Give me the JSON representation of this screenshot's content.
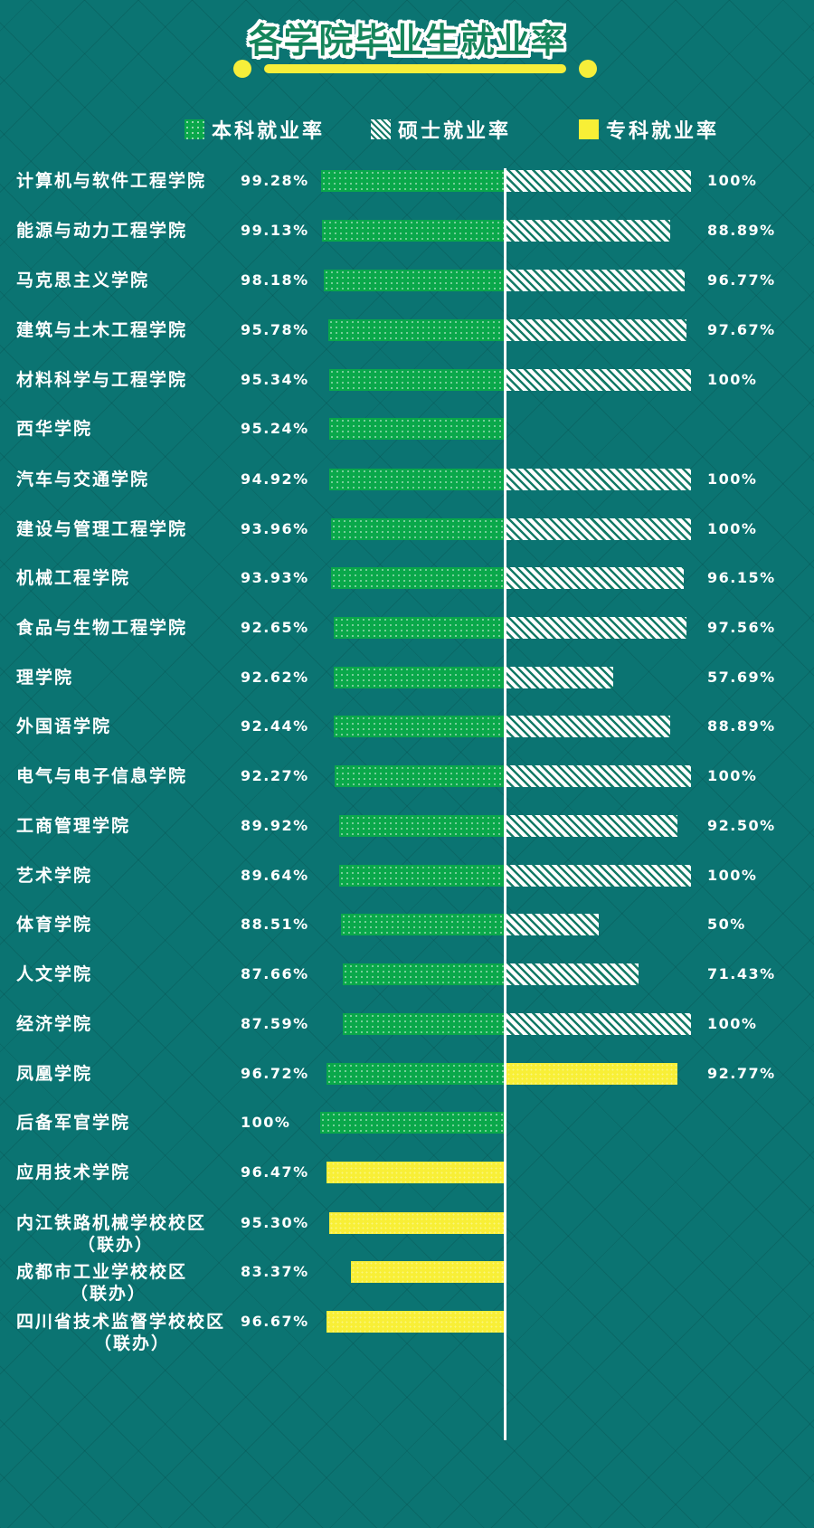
{
  "title": "各学院毕业生就业率",
  "legend": {
    "undergrad": "本科就业率",
    "master": "硕士就业率",
    "junior": "专科就业率"
  },
  "colors": {
    "background": "#0b7472",
    "undergrad": "#0aa84a",
    "master": "#ffffff",
    "junior": "#f8ef36",
    "title": "#14845a"
  },
  "rows": [
    {
      "name": "计算机与软件工程学院",
      "left": "99.28%",
      "left_type": "undergrad",
      "right": "100%",
      "right_type": "master"
    },
    {
      "name": "能源与动力工程学院",
      "left": "99.13%",
      "left_type": "undergrad",
      "right": "88.89%",
      "right_type": "master"
    },
    {
      "name": "马克思主义学院",
      "left": "98.18%",
      "left_type": "undergrad",
      "right": "96.77%",
      "right_type": "master"
    },
    {
      "name": "建筑与土木工程学院",
      "left": "95.78%",
      "left_type": "undergrad",
      "right": "97.67%",
      "right_type": "master"
    },
    {
      "name": "材料科学与工程学院",
      "left": "95.34%",
      "left_type": "undergrad",
      "right": "100%",
      "right_type": "master"
    },
    {
      "name": "西华学院",
      "left": "95.24%",
      "left_type": "undergrad",
      "right": "",
      "right_type": ""
    },
    {
      "name": "汽车与交通学院",
      "left": "94.92%",
      "left_type": "undergrad",
      "right": "100%",
      "right_type": "master"
    },
    {
      "name": "建设与管理工程学院",
      "left": "93.96%",
      "left_type": "undergrad",
      "right": "100%",
      "right_type": "master"
    },
    {
      "name": "机械工程学院",
      "left": "93.93%",
      "left_type": "undergrad",
      "right": "96.15%",
      "right_type": "master"
    },
    {
      "name": "食品与生物工程学院",
      "left": "92.65%",
      "left_type": "undergrad",
      "right": "97.56%",
      "right_type": "master"
    },
    {
      "name": "理学院",
      "left": "92.62%",
      "left_type": "undergrad",
      "right": "57.69%",
      "right_type": "master"
    },
    {
      "name": "外国语学院",
      "left": "92.44%",
      "left_type": "undergrad",
      "right": "88.89%",
      "right_type": "master"
    },
    {
      "name": "电气与电子信息学院",
      "left": "92.27%",
      "left_type": "undergrad",
      "right": "100%",
      "right_type": "master"
    },
    {
      "name": "工商管理学院",
      "left": "89.92%",
      "left_type": "undergrad",
      "right": "92.50%",
      "right_type": "master"
    },
    {
      "name": "艺术学院",
      "left": "89.64%",
      "left_type": "undergrad",
      "right": "100%",
      "right_type": "master"
    },
    {
      "name": "体育学院",
      "left": "88.51%",
      "left_type": "undergrad",
      "right": "50%",
      "right_type": "master"
    },
    {
      "name": "人文学院",
      "left": "87.66%",
      "left_type": "undergrad",
      "right": "71.43%",
      "right_type": "master"
    },
    {
      "name": "经济学院",
      "left": "87.59%",
      "left_type": "undergrad",
      "right": "100%",
      "right_type": "master"
    },
    {
      "name": "凤凰学院",
      "left": "96.72%",
      "left_type": "undergrad",
      "right": "92.77%",
      "right_type": "junior"
    },
    {
      "name": "后备军官学院",
      "left": "100%",
      "left_type": "undergrad",
      "right": "",
      "right_type": ""
    },
    {
      "name": "应用技术学院",
      "left": "96.47%",
      "left_type": "junior",
      "right": "",
      "right_type": ""
    },
    {
      "name": "内江铁路机械学校校区",
      "sub": "（联办）",
      "left": "95.30%",
      "left_type": "junior",
      "right": "",
      "right_type": ""
    },
    {
      "name": "成都市工业学校校区",
      "sub": "（联办）",
      "left": "83.37%",
      "left_type": "junior",
      "right": "",
      "right_type": ""
    },
    {
      "name": "四川省技术监督学校校区",
      "sub": "（联办）",
      "left": "96.67%",
      "left_type": "junior",
      "right": "",
      "right_type": ""
    }
  ],
  "chart_data": {
    "type": "bar",
    "title": "各学院毕业生就业率",
    "orientation": "horizontal-butterfly",
    "xlabel": "",
    "ylabel": "",
    "xlim": [
      0,
      100
    ],
    "grid": false,
    "legend_position": "top",
    "categories": [
      "计算机与软件工程学院",
      "能源与动力工程学院",
      "马克思主义学院",
      "建筑与土木工程学院",
      "材料科学与工程学院",
      "西华学院",
      "汽车与交通学院",
      "建设与管理工程学院",
      "机械工程学院",
      "食品与生物工程学院",
      "理学院",
      "外国语学院",
      "电气与电子信息学院",
      "工商管理学院",
      "艺术学院",
      "体育学院",
      "人文学院",
      "经济学院",
      "凤凰学院",
      "后备军官学院",
      "应用技术学院",
      "内江铁路机械学校校区（联办）",
      "成都市工业学校校区（联办）",
      "四川省技术监督学校校区（联办）"
    ],
    "series": [
      {
        "name": "本科就业率",
        "side": "left",
        "values": [
          99.28,
          99.13,
          98.18,
          95.78,
          95.34,
          95.24,
          94.92,
          93.96,
          93.93,
          92.65,
          92.62,
          92.44,
          92.27,
          89.92,
          89.64,
          88.51,
          87.66,
          87.59,
          96.72,
          100,
          null,
          null,
          null,
          null
        ]
      },
      {
        "name": "硕士就业率",
        "side": "right",
        "values": [
          100,
          88.89,
          96.77,
          97.67,
          100,
          null,
          100,
          100,
          96.15,
          97.56,
          57.69,
          88.89,
          100,
          92.5,
          100,
          50,
          71.43,
          100,
          null,
          null,
          null,
          null,
          null,
          null
        ]
      },
      {
        "name": "专科就业率",
        "side": "mixed",
        "values": [
          null,
          null,
          null,
          null,
          null,
          null,
          null,
          null,
          null,
          null,
          null,
          null,
          null,
          null,
          null,
          null,
          null,
          null,
          92.77,
          null,
          96.47,
          95.3,
          83.37,
          96.67
        ]
      }
    ]
  }
}
